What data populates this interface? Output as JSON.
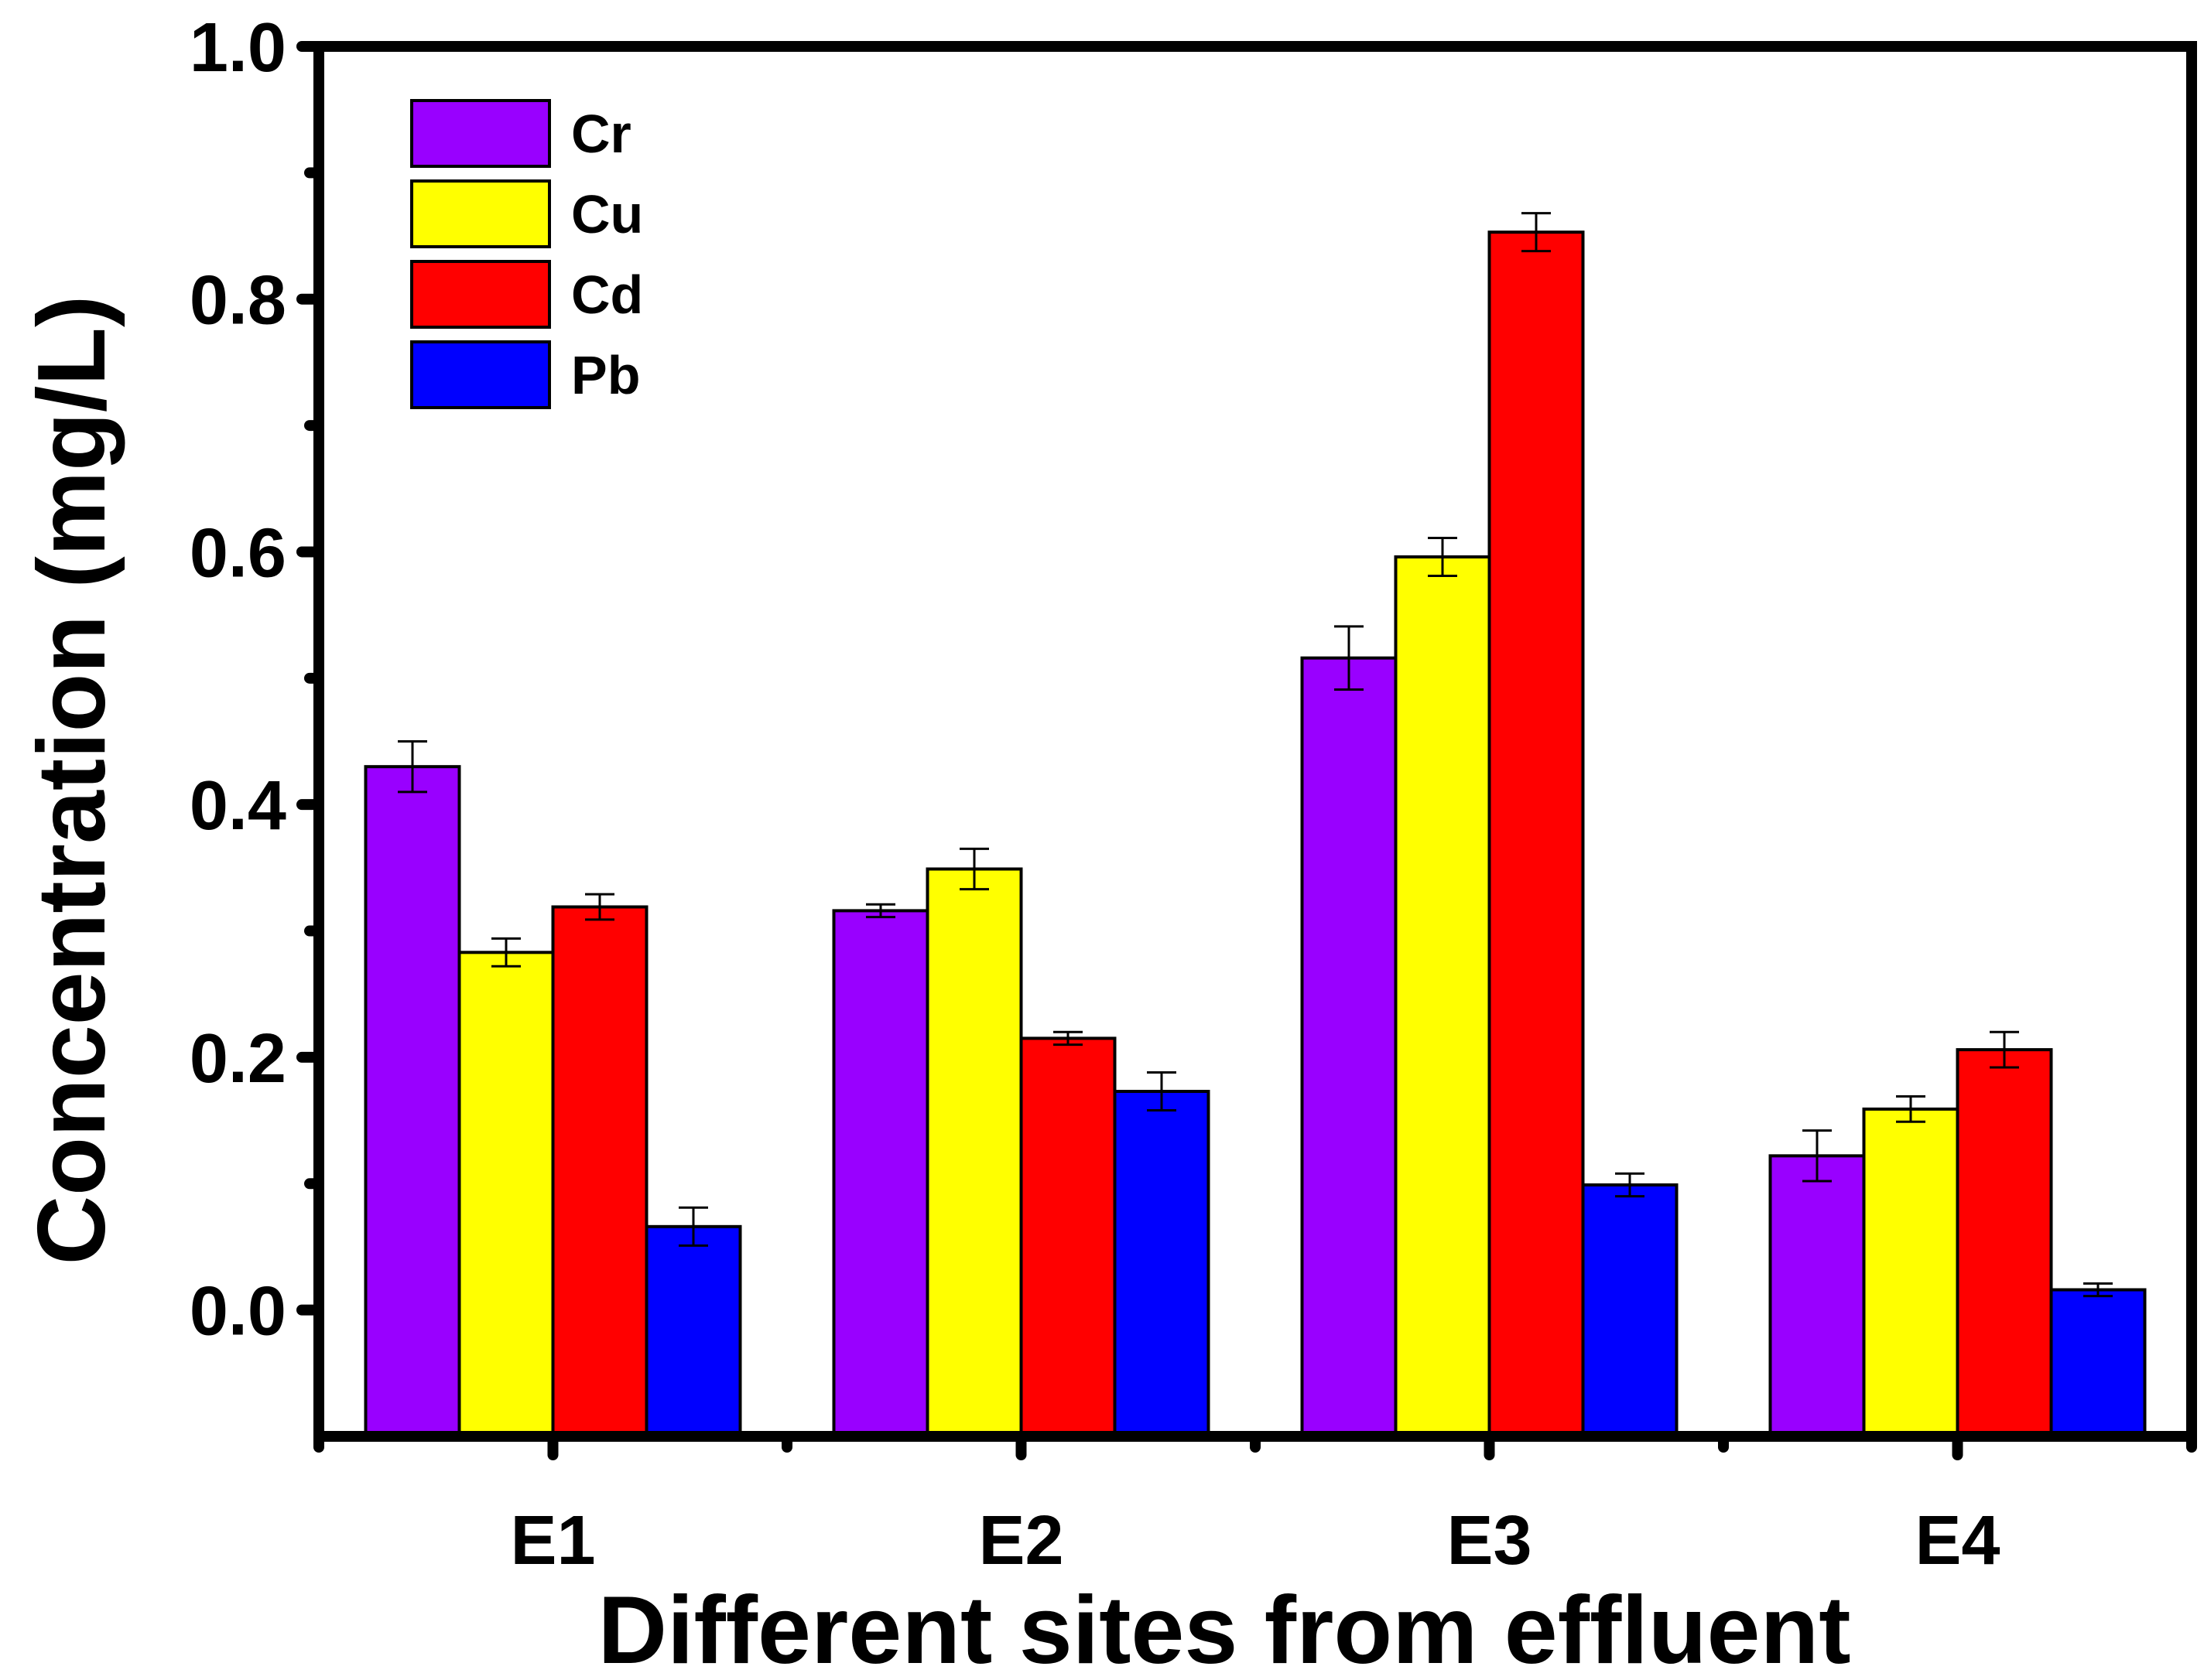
{
  "chart_data": {
    "type": "bar",
    "title": "",
    "xlabel": "Different sites from effluent",
    "ylabel": "Concentration (mg/L)",
    "categories": [
      "E1",
      "E2",
      "E3",
      "E4"
    ],
    "ylim": [
      -0.1,
      1.0
    ],
    "yticks": [
      "0.0",
      "0.2",
      "0.4",
      "0.6",
      "0.8",
      "1.0"
    ],
    "ytick_values": [
      0.0,
      0.2,
      0.4,
      0.6,
      0.8,
      1.0
    ],
    "legend_position": "top-left",
    "grid": false,
    "series": [
      {
        "name": "Cr",
        "color": "#9900FF",
        "values": [
          0.43,
          0.316,
          0.516,
          0.122
        ],
        "errors": [
          0.02,
          0.005,
          0.025,
          0.02
        ]
      },
      {
        "name": "Cu",
        "color": "#FFFF00",
        "values": [
          0.283,
          0.349,
          0.596,
          0.159
        ],
        "errors": [
          0.011,
          0.016,
          0.015,
          0.01
        ]
      },
      {
        "name": "Cd",
        "color": "#FF0000",
        "values": [
          0.319,
          0.215,
          0.853,
          0.206
        ],
        "errors": [
          0.01,
          0.005,
          0.015,
          0.014
        ]
      },
      {
        "name": "Pb",
        "color": "#0000FF",
        "values": [
          0.066,
          0.173,
          0.099,
          0.016
        ],
        "errors": [
          0.015,
          0.015,
          0.009,
          0.005
        ]
      }
    ]
  }
}
